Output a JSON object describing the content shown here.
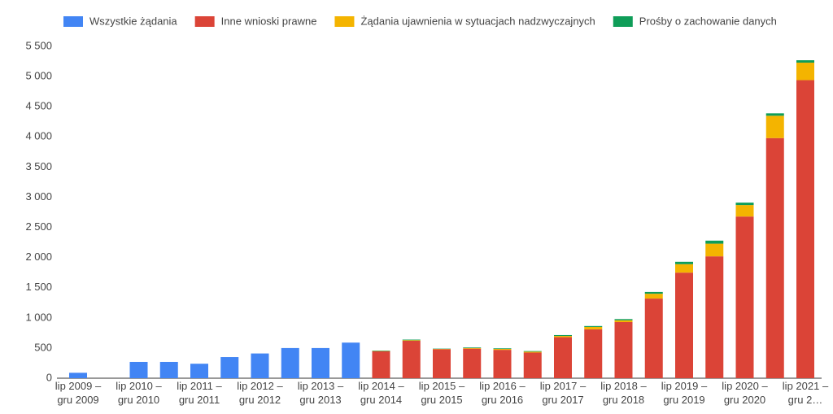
{
  "chart_data": {
    "type": "stacked_bar",
    "categories": [
      "lip 2009 – gru 2009",
      null,
      "lip 2010 – gru 2010",
      null,
      "lip 2011 – gru 2011",
      null,
      "lip 2012 – gru 2012",
      null,
      "lip 2013 – gru 2013",
      null,
      "lip 2014 – gru 2014",
      null,
      "lip 2015 – gru 2015",
      null,
      "lip 2016 – gru 2016",
      null,
      "lip 2017 – gru 2017",
      null,
      "lip 2018 – gru 2018",
      null,
      "lip 2019 – gru 2019",
      null,
      "lip 2020 – gru 2020",
      null,
      "lip 2021 – gru 2…"
    ],
    "series": [
      {
        "name": "Wszystkie żądania",
        "color": "#4285f4",
        "values": [
          90,
          0,
          270,
          270,
          240,
          350,
          410,
          500,
          500,
          590,
          null,
          null,
          null,
          null,
          null,
          null,
          null,
          null,
          null,
          null,
          null,
          null,
          null,
          null,
          null
        ]
      },
      {
        "name": "Inne wnioski prawne",
        "color": "#db4437",
        "values": [
          null,
          null,
          null,
          null,
          null,
          null,
          null,
          null,
          null,
          null,
          445,
          620,
          480,
          490,
          470,
          425,
          680,
          810,
          930,
          1320,
          1750,
          2020,
          2680,
          3980,
          4940
        ]
      },
      {
        "name": "Żądania ujawnienia w sytuacjach nadzwyczajnych",
        "color": "#f4b400",
        "values": [
          null,
          null,
          null,
          null,
          null,
          null,
          null,
          null,
          null,
          null,
          5,
          10,
          5,
          10,
          15,
          15,
          20,
          40,
          30,
          80,
          140,
          210,
          190,
          370,
          290
        ]
      },
      {
        "name": "Prośby o zachowanie danych",
        "color": "#0f9d58",
        "values": [
          null,
          null,
          null,
          null,
          null,
          null,
          null,
          null,
          null,
          null,
          8,
          10,
          5,
          10,
          10,
          10,
          15,
          15,
          20,
          30,
          40,
          50,
          40,
          40,
          40
        ]
      }
    ],
    "ylim": [
      0,
      5500
    ],
    "yticks": [
      0,
      500,
      {
        "value": 1000,
        "label": "1 000"
      },
      {
        "value": 1500,
        "label": "1 500"
      },
      {
        "value": 2000,
        "label": "2 000"
      },
      {
        "value": 2500,
        "label": "2 500"
      },
      {
        "value": 3000,
        "label": "3 000"
      },
      {
        "value": 3500,
        "label": "3 500"
      },
      {
        "value": 4000,
        "label": "4 000"
      },
      {
        "value": 4500,
        "label": "4 500"
      },
      {
        "value": 5000,
        "label": "5 000"
      },
      {
        "value": 5500,
        "label": "5 500"
      }
    ],
    "grid": false,
    "legend": "top"
  }
}
